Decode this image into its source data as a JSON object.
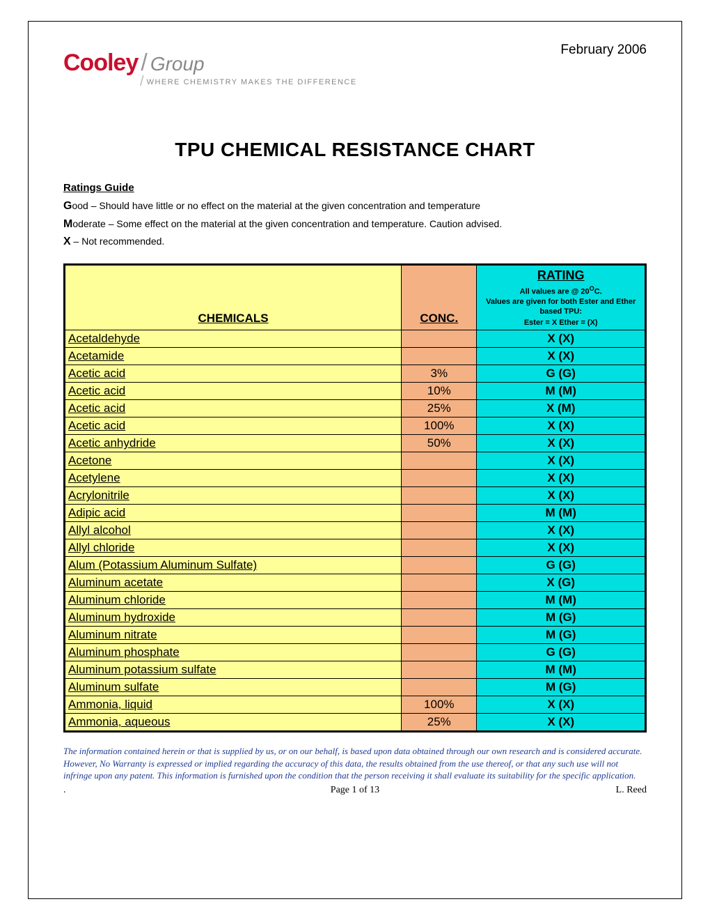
{
  "date": "February 2006",
  "logo": {
    "brand": "Cooley",
    "sub": "Group",
    "tagline": "WHERE CHEMISTRY MAKES THE DIFFERENCE"
  },
  "title": "TPU CHEMICAL RESISTANCE CHART",
  "ratings_guide": {
    "header": "Ratings Guide",
    "good_label": "G",
    "good_text": "ood – Should have little or no effect on the material at the given concentration and temperature",
    "moderate_label": "M",
    "moderate_text": "oderate – Some effect on the material at the given concentration and temperature.  Caution advised.",
    "x_label": "X",
    "x_text": " – Not recommended."
  },
  "table": {
    "headers": {
      "chemicals": "CHEMICALS",
      "conc": "CONC.",
      "rating_title": "RATING",
      "rating_sub1": "All values are @ 20",
      "rating_sub1_sup": "O",
      "rating_sub1_tail": "C.",
      "rating_sub2": "Values are given for both Ester and Ether based TPU:",
      "rating_legend": "Ester = X    Ether = (X)"
    },
    "colors": {
      "chemicals_bg": "#ffff99",
      "conc_bg": "#f4b183",
      "rating_bg": "#00e0e0",
      "border": "#000000"
    },
    "rows": [
      {
        "chem": "Acetaldehyde",
        "conc": "",
        "rating": "X (X)"
      },
      {
        "chem": "Acetamide",
        "conc": "",
        "rating": "X (X)"
      },
      {
        "chem": "Acetic acid",
        "conc": "3%",
        "rating": "G (G)"
      },
      {
        "chem": "Acetic acid",
        "conc": "10%",
        "rating": "M (M)"
      },
      {
        "chem": "Acetic acid",
        "conc": "25%",
        "rating": "X (M)"
      },
      {
        "chem": "Acetic acid",
        "conc": "100%",
        "rating": "X (X)"
      },
      {
        "chem": "Acetic anhydride",
        "conc": "50%",
        "rating": "X (X)"
      },
      {
        "chem": "Acetone",
        "conc": "",
        "rating": "X (X)"
      },
      {
        "chem": "Acetylene",
        "conc": "",
        "rating": "X (X)"
      },
      {
        "chem": "Acrylonitrile",
        "conc": "",
        "rating": "X (X)"
      },
      {
        "chem": "Adipic acid",
        "conc": "",
        "rating": "M (M)"
      },
      {
        "chem": "Allyl alcohol",
        "conc": "",
        "rating": "X (X)"
      },
      {
        "chem": "Allyl chloride",
        "conc": "",
        "rating": "X (X)"
      },
      {
        "chem": "Alum (Potassium Aluminum Sulfate)",
        "conc": "",
        "rating": "G (G)"
      },
      {
        "chem": "Aluminum acetate",
        "conc": "",
        "rating": "X (G)"
      },
      {
        "chem": "Aluminum chloride",
        "conc": "",
        "rating": "M (M)"
      },
      {
        "chem": "Aluminum hydroxide",
        "conc": "",
        "rating": "M (G)"
      },
      {
        "chem": "Aluminum nitrate",
        "conc": "",
        "rating": "M (G)"
      },
      {
        "chem": "Aluminum phosphate",
        "conc": "",
        "rating": "G (G)"
      },
      {
        "chem": "Aluminum potassium sulfate",
        "conc": "",
        "rating": "M (M)"
      },
      {
        "chem": "Aluminum sulfate",
        "conc": "",
        "rating": "M (G)"
      },
      {
        "chem": "Ammonia, liquid",
        "conc": "100%",
        "rating": "X (X)"
      },
      {
        "chem": "Ammonia, aqueous",
        "conc": "25%",
        "rating": "X (X)"
      }
    ]
  },
  "disclaimer": "The information contained herein or that is supplied by us, or on our behalf, is based upon data obtained through our own research and is considered accurate.  However, No Warranty is expressed or implied regarding the accuracy of this data, the results obtained from the use thereof, or that any such use will not infringe upon any patent.  This information is furnished upon the condition that the person receiving it shall evaluate its suitability for the specific application.",
  "footer": {
    "dot": ".",
    "page": "Page 1 of 13",
    "author": "L. Reed"
  }
}
